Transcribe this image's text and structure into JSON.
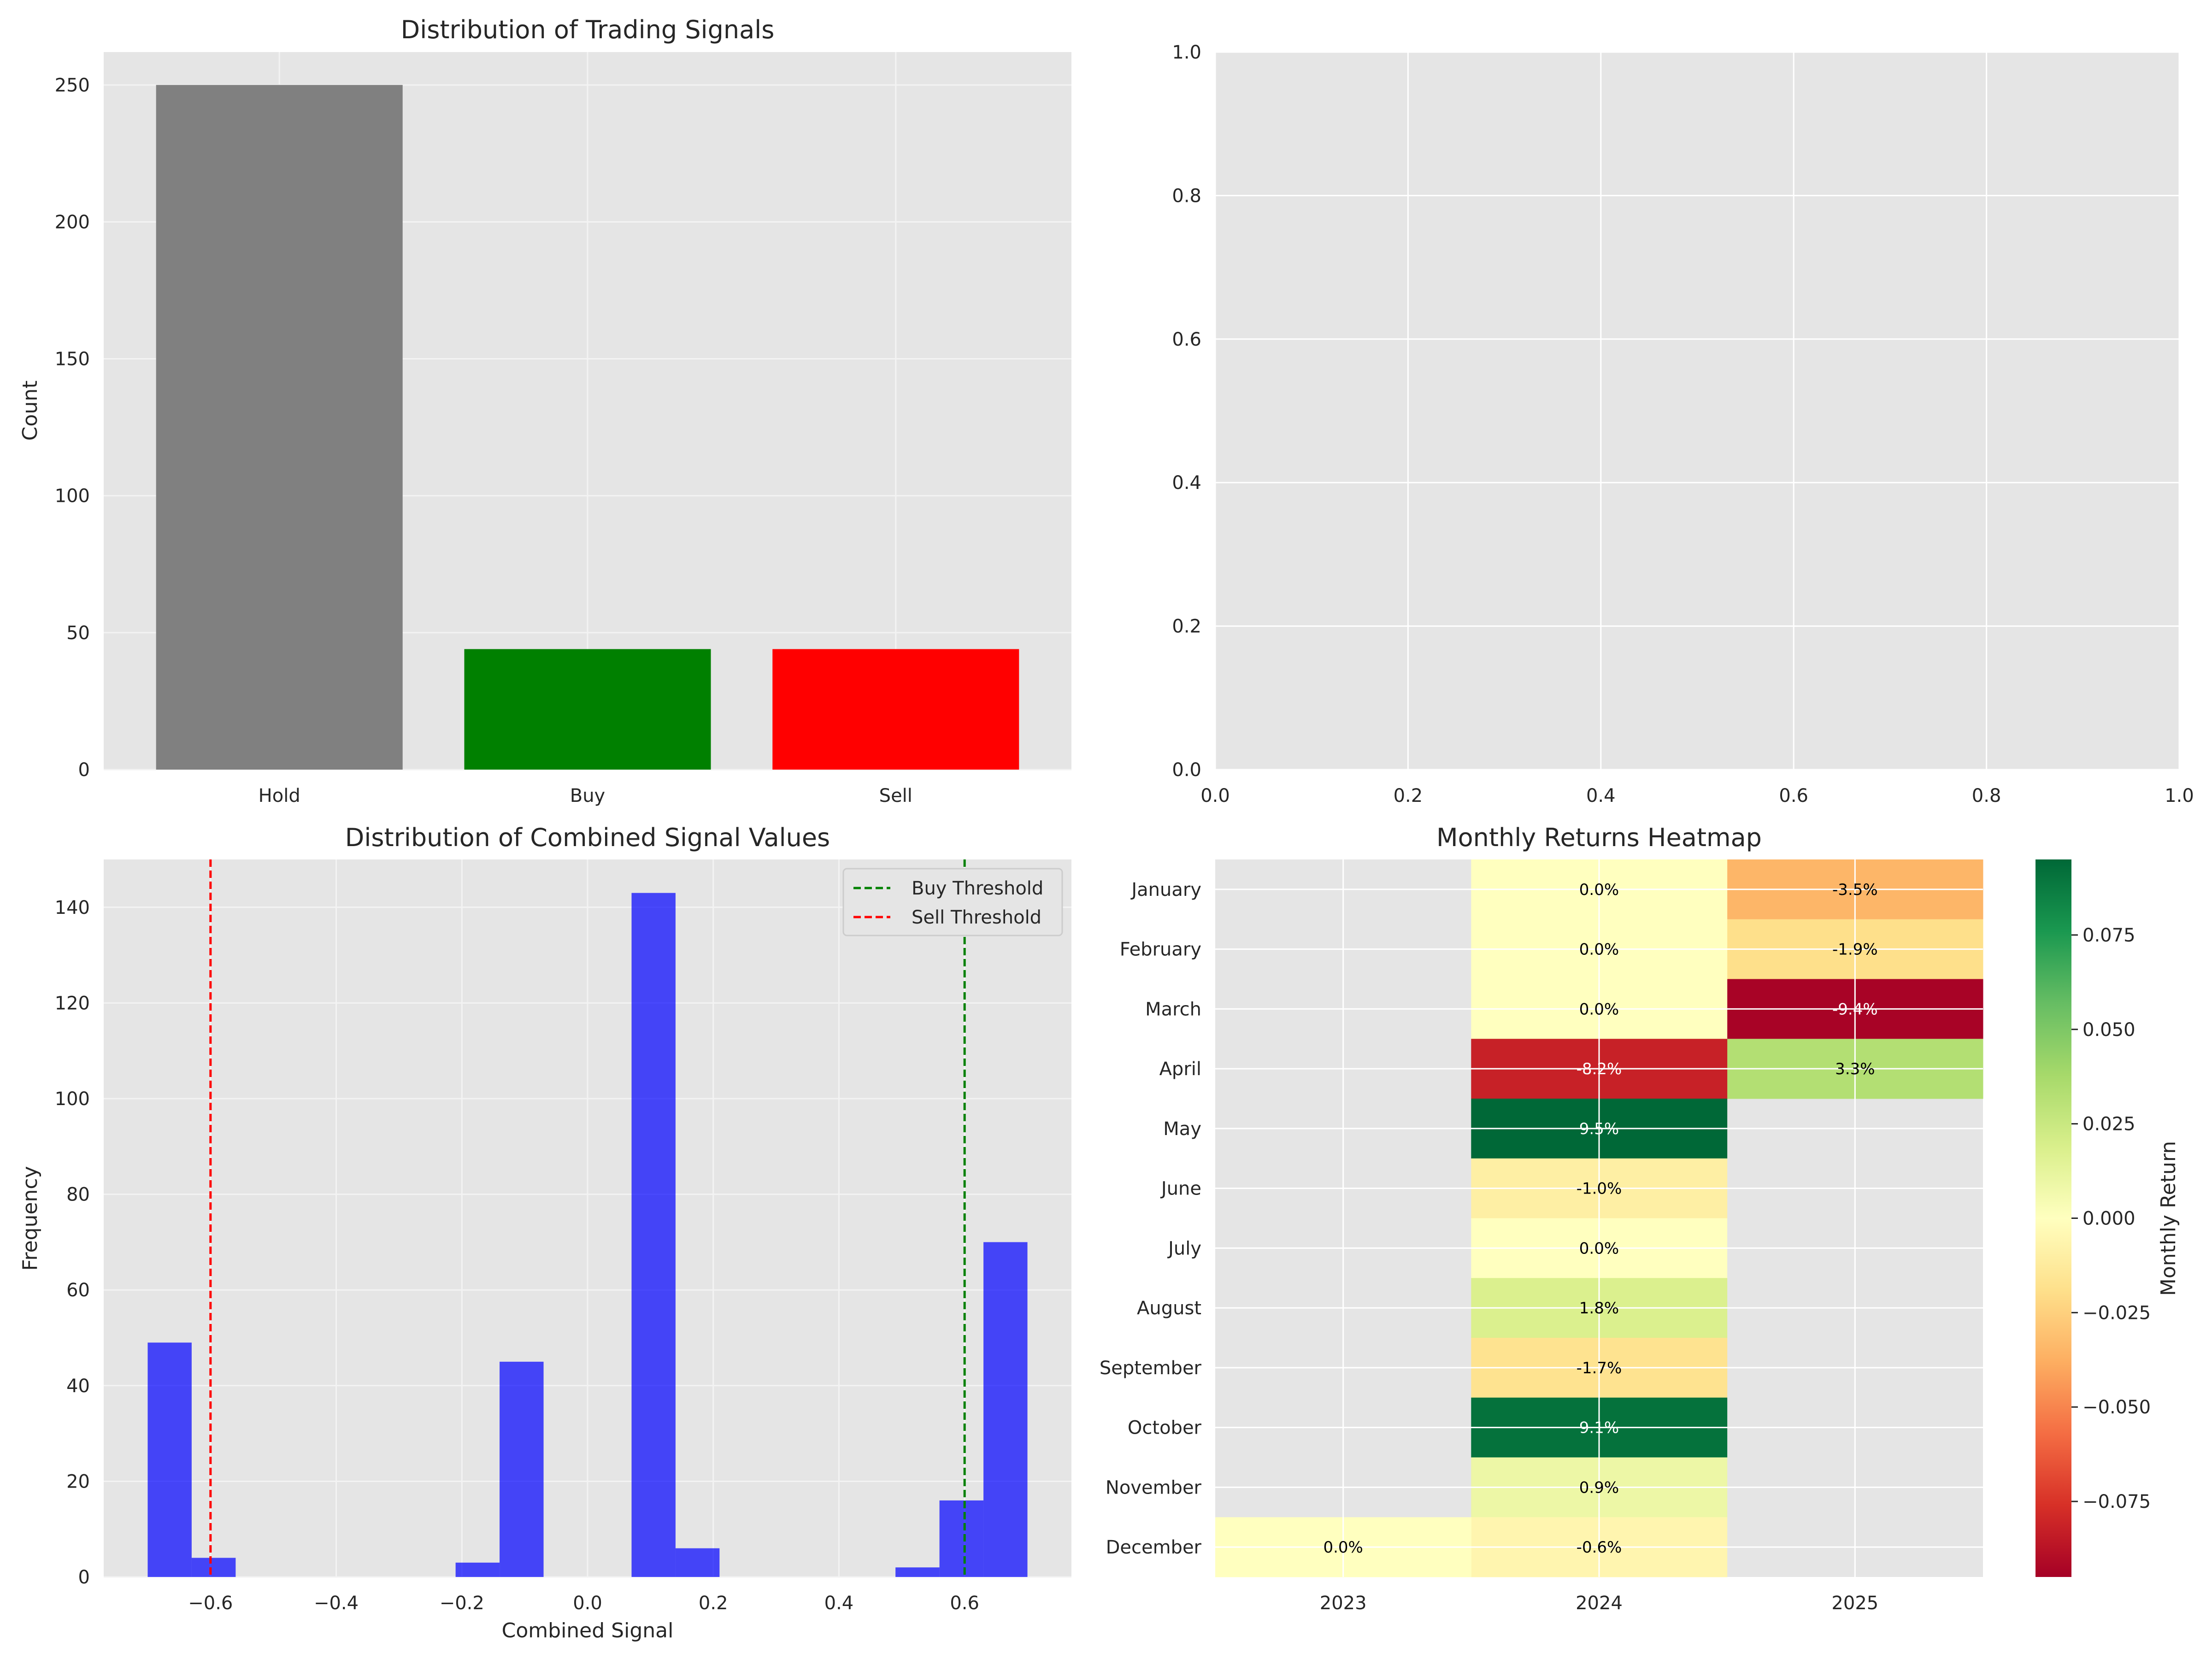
{
  "chart_data": [
    {
      "type": "bar",
      "title": "Distribution of Trading Signals",
      "xlabel": "",
      "ylabel": "Count",
      "categories": [
        "Hold",
        "Buy",
        "Sell"
      ],
      "values": [
        250,
        44,
        44
      ],
      "colors": [
        "#808080",
        "#008000",
        "#ff0000"
      ],
      "ylim": [
        0,
        262
      ],
      "yticks": [
        0,
        50,
        100,
        150,
        200,
        250
      ],
      "grid": true
    },
    {
      "type": "scatter",
      "title": "",
      "xlabel": "",
      "ylabel": "",
      "xlim": [
        0,
        1
      ],
      "ylim": [
        0,
        1
      ],
      "xticks": [
        0.0,
        0.2,
        0.4,
        0.6,
        0.8,
        1.0
      ],
      "yticks": [
        0.0,
        0.2,
        0.4,
        0.6,
        0.8,
        1.0
      ],
      "series": [],
      "grid": true
    },
    {
      "type": "bar",
      "subtype": "histogram",
      "title": "Distribution of Combined Signal Values",
      "xlabel": "Combined Signal",
      "ylabel": "Frequency",
      "xlim": [
        -0.77,
        0.77
      ],
      "ylim": [
        0,
        150
      ],
      "xticks": [
        -0.6,
        -0.4,
        -0.2,
        0.0,
        0.2,
        0.4,
        0.6
      ],
      "yticks": [
        0,
        20,
        40,
        60,
        80,
        100,
        120,
        140
      ],
      "bin_start": -0.7,
      "bin_width": 0.07,
      "counts": [
        49,
        4,
        0,
        0,
        0,
        0,
        0,
        3,
        45,
        0,
        0,
        143,
        6,
        0,
        0,
        0,
        0,
        2,
        16,
        70
      ],
      "bar_color": "#0000ff",
      "bar_opacity": 0.7,
      "thresholds": [
        {
          "name": "Buy Threshold",
          "x": 0.6,
          "color": "#008000"
        },
        {
          "name": "Sell Threshold",
          "x": -0.6,
          "color": "#ff0000"
        }
      ],
      "legend": "top-right",
      "grid": true
    },
    {
      "type": "heatmap",
      "title": "Monthly Returns Heatmap",
      "x_categories": [
        "2023",
        "2024",
        "2025"
      ],
      "y_categories": [
        "January",
        "February",
        "March",
        "April",
        "May",
        "June",
        "July",
        "August",
        "September",
        "October",
        "November",
        "December"
      ],
      "cells": [
        {
          "col": 2,
          "row": 0,
          "value": -0.035,
          "label": "-3.5%"
        },
        {
          "col": 2,
          "row": 1,
          "value": -0.019,
          "label": "-1.9%"
        },
        {
          "col": 2,
          "row": 2,
          "value": -0.094,
          "label": "-9.4%"
        },
        {
          "col": 2,
          "row": 3,
          "value": 0.033,
          "label": "3.3%"
        },
        {
          "col": 1,
          "row": 0,
          "value": 0.0,
          "label": "0.0%"
        },
        {
          "col": 1,
          "row": 1,
          "value": 0.0,
          "label": "0.0%"
        },
        {
          "col": 1,
          "row": 2,
          "value": 0.0,
          "label": "0.0%"
        },
        {
          "col": 1,
          "row": 3,
          "value": -0.082,
          "label": "-8.2%"
        },
        {
          "col": 1,
          "row": 4,
          "value": 0.095,
          "label": "9.5%"
        },
        {
          "col": 1,
          "row": 5,
          "value": -0.01,
          "label": "-1.0%"
        },
        {
          "col": 1,
          "row": 6,
          "value": 0.0,
          "label": "0.0%"
        },
        {
          "col": 1,
          "row": 7,
          "value": 0.018,
          "label": "1.8%"
        },
        {
          "col": 1,
          "row": 8,
          "value": -0.017,
          "label": "-1.7%"
        },
        {
          "col": 1,
          "row": 9,
          "value": 0.091,
          "label": "9.1%"
        },
        {
          "col": 1,
          "row": 10,
          "value": 0.009,
          "label": "0.9%"
        },
        {
          "col": 1,
          "row": 11,
          "value": -0.006,
          "label": "-0.6%"
        },
        {
          "col": 0,
          "row": 11,
          "value": 0.0,
          "label": "0.0%"
        }
      ],
      "colormap": "RdYlGn",
      "vmin": -0.095,
      "vmax": 0.095,
      "colorbar_label": "Monthly Return",
      "colorbar_ticks": [
        -0.075,
        -0.05,
        -0.025,
        0.0,
        0.025,
        0.05,
        0.075
      ],
      "colorbar_tick_labels": [
        "−0.075",
        "−0.050",
        "−0.025",
        "0.000",
        "0.025",
        "0.050",
        "0.075"
      ]
    }
  ]
}
